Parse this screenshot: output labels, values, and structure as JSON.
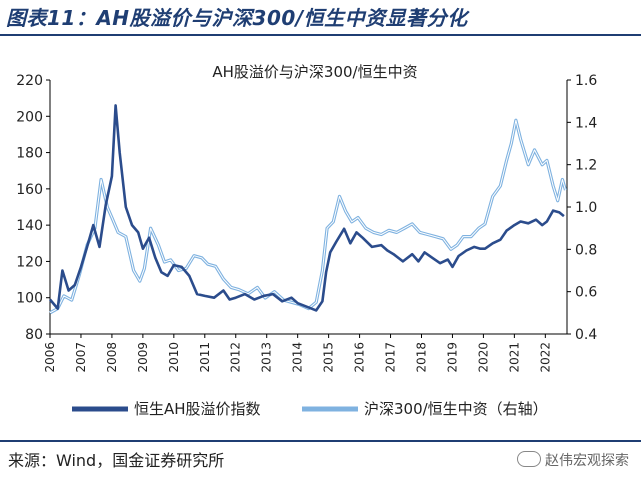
{
  "figure_title": "图表11：AH股溢价与沪深300/恒生中资显著分化",
  "source_text": "来源：Wind，国金证券研究所",
  "watermark_text": "赵伟宏观探索",
  "colors": {
    "title": "#1F3E73",
    "series1": "#2B4C8C",
    "series2": "#7FB2E0"
  },
  "chart_data": {
    "type": "line",
    "title": "AH股溢价与沪深300/恒生中资",
    "xlabel": "",
    "ylabel": "",
    "x_ticks": [
      "2006",
      "2007",
      "2008",
      "2009",
      "2010",
      "2011",
      "2012",
      "2013",
      "2014",
      "2015",
      "2016",
      "2017",
      "2018",
      "2019",
      "2020",
      "2021",
      "2022"
    ],
    "y_left": {
      "range": [
        80,
        220
      ],
      "ticks": [
        "80",
        "100",
        "120",
        "140",
        "160",
        "180",
        "200",
        "220"
      ]
    },
    "y_right": {
      "range": [
        0.4,
        1.6
      ],
      "ticks": [
        "0.4",
        "0.6",
        "0.8",
        "1.0",
        "1.2",
        "1.4",
        "1.6"
      ]
    },
    "legend": {
      "position": "bottom"
    },
    "series": [
      {
        "name": "恒生AH股溢价指数",
        "axis": "left",
        "points": [
          [
            2006.0,
            99
          ],
          [
            2006.25,
            94
          ],
          [
            2006.4,
            115
          ],
          [
            2006.6,
            104
          ],
          [
            2006.8,
            107
          ],
          [
            2007.0,
            117
          ],
          [
            2007.2,
            128
          ],
          [
            2007.4,
            140
          ],
          [
            2007.6,
            128
          ],
          [
            2007.8,
            151
          ],
          [
            2008.0,
            167
          ],
          [
            2008.12,
            206
          ],
          [
            2008.25,
            180
          ],
          [
            2008.45,
            150
          ],
          [
            2008.65,
            140
          ],
          [
            2008.85,
            136
          ],
          [
            2009.0,
            127
          ],
          [
            2009.2,
            133
          ],
          [
            2009.4,
            122
          ],
          [
            2009.6,
            114
          ],
          [
            2009.8,
            112
          ],
          [
            2010.0,
            118
          ],
          [
            2010.25,
            117
          ],
          [
            2010.5,
            112
          ],
          [
            2010.75,
            102
          ],
          [
            2011.0,
            101
          ],
          [
            2011.3,
            100
          ],
          [
            2011.6,
            104
          ],
          [
            2011.8,
            99
          ],
          [
            2012.0,
            100
          ],
          [
            2012.3,
            102
          ],
          [
            2012.6,
            99
          ],
          [
            2012.9,
            101
          ],
          [
            2013.2,
            102
          ],
          [
            2013.5,
            98
          ],
          [
            2013.8,
            100
          ],
          [
            2014.0,
            97
          ],
          [
            2014.3,
            95
          ],
          [
            2014.6,
            93
          ],
          [
            2014.8,
            98
          ],
          [
            2014.92,
            114
          ],
          [
            2015.05,
            125
          ],
          [
            2015.25,
            131
          ],
          [
            2015.5,
            138
          ],
          [
            2015.7,
            130
          ],
          [
            2015.9,
            136
          ],
          [
            2016.1,
            133
          ],
          [
            2016.4,
            128
          ],
          [
            2016.7,
            129
          ],
          [
            2016.9,
            126
          ],
          [
            2017.1,
            124
          ],
          [
            2017.4,
            120
          ],
          [
            2017.7,
            124
          ],
          [
            2017.9,
            120
          ],
          [
            2018.1,
            125
          ],
          [
            2018.35,
            122
          ],
          [
            2018.6,
            119
          ],
          [
            2018.85,
            121
          ],
          [
            2019.0,
            117
          ],
          [
            2019.2,
            123
          ],
          [
            2019.45,
            126
          ],
          [
            2019.7,
            128
          ],
          [
            2019.9,
            127
          ],
          [
            2020.05,
            127
          ],
          [
            2020.3,
            130
          ],
          [
            2020.55,
            132
          ],
          [
            2020.75,
            137
          ],
          [
            2021.0,
            140
          ],
          [
            2021.2,
            142
          ],
          [
            2021.45,
            141
          ],
          [
            2021.7,
            143
          ],
          [
            2021.9,
            140
          ],
          [
            2022.05,
            142
          ],
          [
            2022.25,
            148
          ],
          [
            2022.45,
            147
          ],
          [
            2022.6,
            145
          ]
        ]
      },
      {
        "name": "沪深300/恒生中资（右轴）",
        "axis": "right",
        "points": [
          [
            2006.0,
            0.5
          ],
          [
            2006.25,
            0.52
          ],
          [
            2006.45,
            0.58
          ],
          [
            2006.7,
            0.56
          ],
          [
            2006.95,
            0.68
          ],
          [
            2007.2,
            0.82
          ],
          [
            2007.45,
            0.9
          ],
          [
            2007.65,
            1.13
          ],
          [
            2007.85,
            1.0
          ],
          [
            2008.0,
            0.95
          ],
          [
            2008.2,
            0.88
          ],
          [
            2008.45,
            0.86
          ],
          [
            2008.7,
            0.7
          ],
          [
            2008.9,
            0.65
          ],
          [
            2009.05,
            0.71
          ],
          [
            2009.25,
            0.9
          ],
          [
            2009.5,
            0.82
          ],
          [
            2009.7,
            0.74
          ],
          [
            2009.9,
            0.75
          ],
          [
            2010.15,
            0.7
          ],
          [
            2010.4,
            0.71
          ],
          [
            2010.65,
            0.77
          ],
          [
            2010.9,
            0.76
          ],
          [
            2011.1,
            0.73
          ],
          [
            2011.35,
            0.72
          ],
          [
            2011.6,
            0.66
          ],
          [
            2011.85,
            0.62
          ],
          [
            2012.1,
            0.61
          ],
          [
            2012.4,
            0.59
          ],
          [
            2012.7,
            0.62
          ],
          [
            2012.95,
            0.57
          ],
          [
            2013.25,
            0.6
          ],
          [
            2013.55,
            0.56
          ],
          [
            2013.8,
            0.55
          ],
          [
            2014.05,
            0.54
          ],
          [
            2014.35,
            0.52
          ],
          [
            2014.6,
            0.55
          ],
          [
            2014.8,
            0.7
          ],
          [
            2014.95,
            0.9
          ],
          [
            2015.15,
            0.93
          ],
          [
            2015.35,
            1.05
          ],
          [
            2015.55,
            0.98
          ],
          [
            2015.75,
            0.93
          ],
          [
            2015.95,
            0.95
          ],
          [
            2016.2,
            0.9
          ],
          [
            2016.45,
            0.88
          ],
          [
            2016.7,
            0.87
          ],
          [
            2016.95,
            0.89
          ],
          [
            2017.2,
            0.88
          ],
          [
            2017.45,
            0.9
          ],
          [
            2017.7,
            0.92
          ],
          [
            2017.95,
            0.88
          ],
          [
            2018.2,
            0.87
          ],
          [
            2018.45,
            0.86
          ],
          [
            2018.7,
            0.85
          ],
          [
            2018.95,
            0.8
          ],
          [
            2019.15,
            0.82
          ],
          [
            2019.35,
            0.86
          ],
          [
            2019.6,
            0.86
          ],
          [
            2019.85,
            0.9
          ],
          [
            2020.05,
            0.92
          ],
          [
            2020.3,
            1.05
          ],
          [
            2020.55,
            1.1
          ],
          [
            2020.75,
            1.22
          ],
          [
            2020.9,
            1.3
          ],
          [
            2021.05,
            1.41
          ],
          [
            2021.2,
            1.32
          ],
          [
            2021.45,
            1.2
          ],
          [
            2021.65,
            1.27
          ],
          [
            2021.9,
            1.2
          ],
          [
            2022.05,
            1.22
          ],
          [
            2022.25,
            1.1
          ],
          [
            2022.4,
            1.03
          ],
          [
            2022.55,
            1.13
          ],
          [
            2022.65,
            1.08
          ]
        ]
      }
    ]
  }
}
